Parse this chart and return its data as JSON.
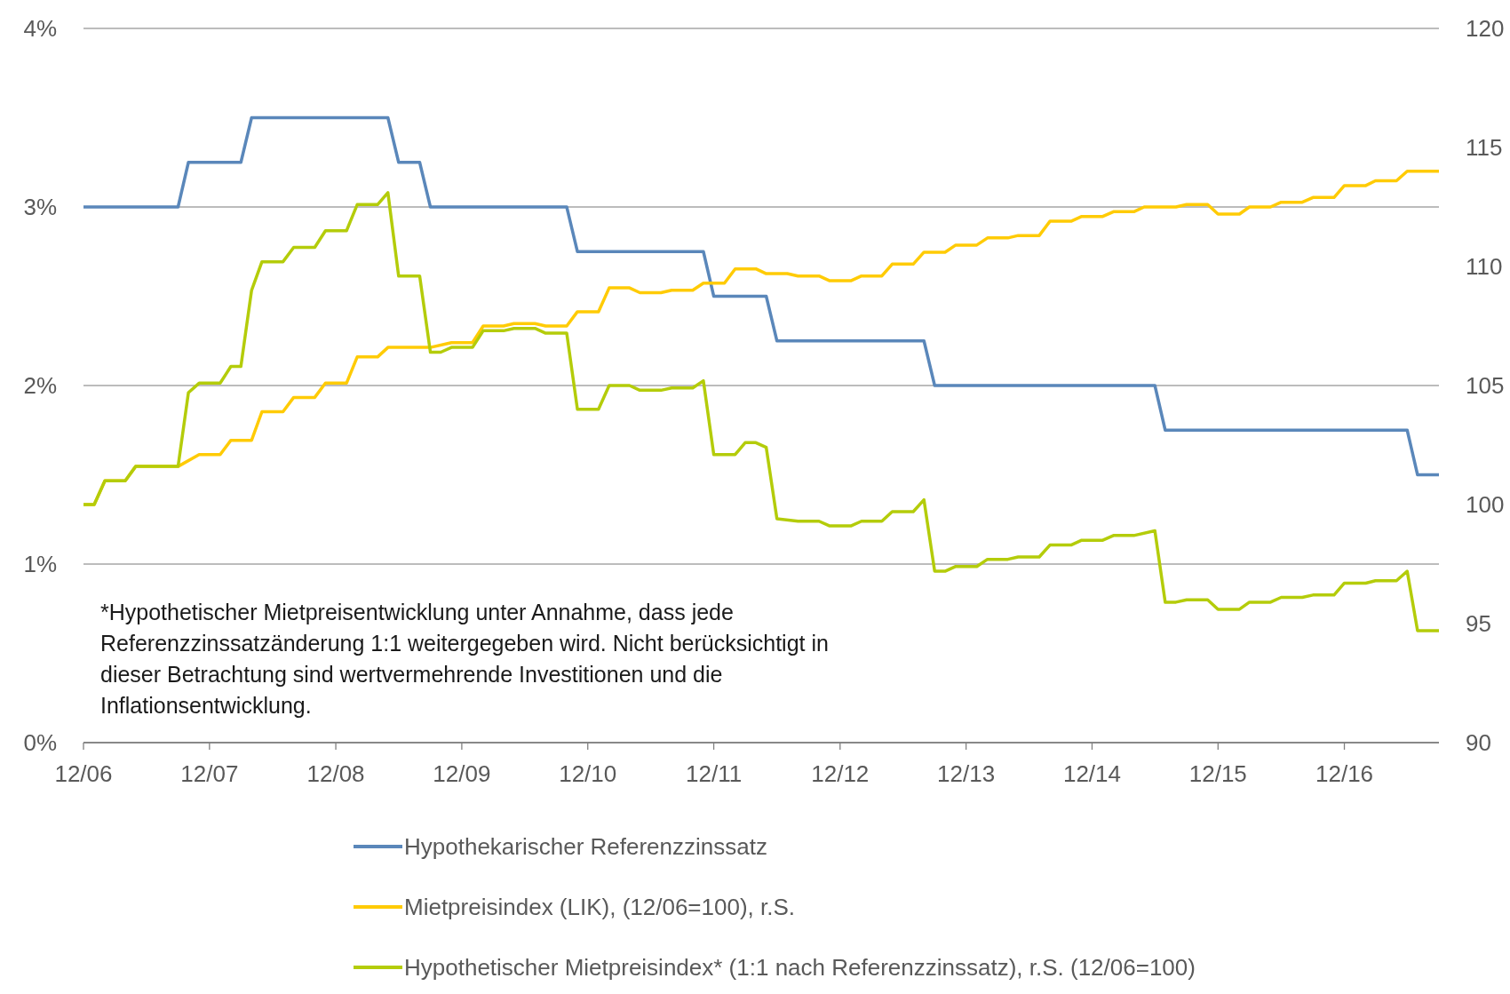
{
  "chart_data": {
    "type": "line",
    "legend": "bottom",
    "grid": "y",
    "line_style": "solid",
    "marker": "none",
    "xlim": [
      "2006-12",
      "2017-09"
    ],
    "xticks": [
      {
        "value": "2006-12",
        "label": "12/06"
      },
      {
        "value": "2007-12",
        "label": "12/07"
      },
      {
        "value": "2008-12",
        "label": "12/08"
      },
      {
        "value": "2009-12",
        "label": "12/09"
      },
      {
        "value": "2010-12",
        "label": "12/10"
      },
      {
        "value": "2011-12",
        "label": "12/11"
      },
      {
        "value": "2012-12",
        "label": "12/12"
      },
      {
        "value": "2013-12",
        "label": "12/13"
      },
      {
        "value": "2014-12",
        "label": "12/14"
      },
      {
        "value": "2015-12",
        "label": "12/15"
      },
      {
        "value": "2016-12",
        "label": "12/16"
      }
    ],
    "ylim": [
      0,
      4
    ],
    "yticks": [
      {
        "value": 0,
        "label": "0%"
      },
      {
        "value": 1,
        "label": "1%"
      },
      {
        "value": 2,
        "label": "2%"
      },
      {
        "value": 3,
        "label": "3%"
      },
      {
        "value": 4,
        "label": "4%"
      }
    ],
    "y2lim": [
      90,
      120
    ],
    "y2ticks": [
      90,
      95,
      100,
      105,
      110,
      115,
      120
    ],
    "annotations": [
      "*Hypothetischer Mietpreisentwicklung unter Annahme, dass jede\nReferenzzinssatzänderung 1:1 weitergegeben wird. Nicht berücksichtigt in\ndieser Betrachtung sind wertvermehrende Investitionen und die\nInflationsentwicklung."
    ],
    "series": [
      {
        "name": "Hypothekarischer Referenzzinssatz",
        "color": "#5a87ba",
        "x": [
          "2006-12",
          "2007-09",
          "2007-10",
          "2008-03",
          "2008-04",
          "2009-05",
          "2009-06",
          "2009-08",
          "2009-09",
          "2010-10",
          "2010-11",
          "2011-11",
          "2011-12",
          "2012-05",
          "2012-06",
          "2013-08",
          "2013-09",
          "2015-06",
          "2015-07",
          "2017-06",
          "2017-07",
          "2017-09"
        ],
        "values": [
          3,
          3,
          3.25,
          3.25,
          3.5,
          3.5,
          3.25,
          3.25,
          3,
          3,
          2.75,
          2.75,
          2.5,
          2.5,
          2.25,
          2.25,
          2,
          2,
          1.75,
          1.75,
          1.5,
          1.5
        ]
      },
      {
        "name": "Mietpreisindex (LIK), (12/06=100), r.S.",
        "color": "#ffcb05",
        "axis": "y2",
        "x": [
          "2006-12",
          "2007-01",
          "2007-02",
          "2007-04",
          "2007-05",
          "2007-09",
          "2007-11",
          "2008-01",
          "2008-02",
          "2008-04",
          "2008-05",
          "2008-07",
          "2008-08",
          "2008-10",
          "2008-11",
          "2009-01",
          "2009-02",
          "2009-04",
          "2009-05",
          "2009-09",
          "2009-11",
          "2010-01",
          "2010-02",
          "2010-04",
          "2010-05",
          "2010-07",
          "2010-08",
          "2010-10",
          "2010-11",
          "2011-01",
          "2011-02",
          "2011-04",
          "2011-05",
          "2011-07",
          "2011-08",
          "2011-10",
          "2011-11",
          "2012-01",
          "2012-02",
          "2012-04",
          "2012-05",
          "2012-07",
          "2012-08",
          "2012-10",
          "2012-11",
          "2013-01",
          "2013-02",
          "2013-04",
          "2013-05",
          "2013-07",
          "2013-08",
          "2013-10",
          "2013-11",
          "2014-01",
          "2014-02",
          "2014-04",
          "2014-05",
          "2014-07",
          "2014-08",
          "2014-10",
          "2014-11",
          "2015-01",
          "2015-02",
          "2015-04",
          "2015-05",
          "2015-08",
          "2015-09",
          "2015-11",
          "2015-12",
          "2016-02",
          "2016-03",
          "2016-05",
          "2016-06",
          "2016-08",
          "2016-09",
          "2016-11",
          "2016-12",
          "2017-02",
          "2017-03",
          "2017-05",
          "2017-06",
          "2017-09"
        ],
        "values": [
          100,
          100,
          101,
          101,
          101.6,
          101.6,
          102.1,
          102.1,
          102.7,
          102.7,
          103.9,
          103.9,
          104.5,
          104.5,
          105.1,
          105.1,
          106.2,
          106.2,
          106.6,
          106.6,
          106.8,
          106.8,
          107.5,
          107.5,
          107.6,
          107.6,
          107.5,
          107.5,
          108.1,
          108.1,
          109.1,
          109.1,
          108.9,
          108.9,
          109,
          109,
          109.3,
          109.3,
          109.9,
          109.9,
          109.7,
          109.7,
          109.6,
          109.6,
          109.4,
          109.4,
          109.6,
          109.6,
          110.1,
          110.1,
          110.6,
          110.6,
          110.9,
          110.9,
          111.2,
          111.2,
          111.3,
          111.3,
          111.9,
          111.9,
          112.1,
          112.1,
          112.3,
          112.3,
          112.5,
          112.5,
          112.6,
          112.6,
          112.2,
          112.2,
          112.5,
          112.5,
          112.7,
          112.7,
          112.9,
          112.9,
          113.4,
          113.4,
          113.6,
          113.6,
          114,
          114
        ]
      },
      {
        "name": "Hypothetischer Mietpreisindex* (1:1 nach Referenzzinssatz), r.S. (12/06=100)",
        "color": "#b4cc0a",
        "axis": "y2",
        "x": [
          "2006-12",
          "2007-01",
          "2007-02",
          "2007-04",
          "2007-05",
          "2007-08",
          "2007-09",
          "2007-10",
          "2007-11",
          "2008-01",
          "2008-02",
          "2008-03",
          "2008-04",
          "2008-05",
          "2008-07",
          "2008-08",
          "2008-10",
          "2008-11",
          "2009-01",
          "2009-02",
          "2009-04",
          "2009-05",
          "2009-06",
          "2009-08",
          "2009-09",
          "2009-10",
          "2009-11",
          "2010-01",
          "2010-02",
          "2010-04",
          "2010-05",
          "2010-07",
          "2010-08",
          "2010-10",
          "2010-11",
          "2011-01",
          "2011-02",
          "2011-04",
          "2011-05",
          "2011-07",
          "2011-08",
          "2011-10",
          "2011-11",
          "2011-12",
          "2012-02",
          "2012-03",
          "2012-04",
          "2012-05",
          "2012-06",
          "2012-08",
          "2012-10",
          "2012-11",
          "2013-01",
          "2013-02",
          "2013-04",
          "2013-05",
          "2013-07",
          "2013-08",
          "2013-09",
          "2013-10",
          "2013-11",
          "2014-01",
          "2014-02",
          "2014-04",
          "2014-05",
          "2014-07",
          "2014-08",
          "2014-10",
          "2014-11",
          "2015-01",
          "2015-02",
          "2015-04",
          "2015-06",
          "2015-07",
          "2015-08",
          "2015-09",
          "2015-11",
          "2015-12",
          "2016-02",
          "2016-03",
          "2016-05",
          "2016-06",
          "2016-08",
          "2016-09",
          "2016-11",
          "2016-12",
          "2017-02",
          "2017-03",
          "2017-05",
          "2017-06",
          "2017-07",
          "2017-09"
        ],
        "values": [
          100,
          100,
          101,
          101,
          101.6,
          101.6,
          101.6,
          104.7,
          105.1,
          105.1,
          105.8,
          105.8,
          109,
          110.2,
          110.2,
          110.8,
          110.8,
          111.5,
          111.5,
          112.6,
          112.6,
          113.1,
          109.6,
          109.6,
          106.4,
          106.4,
          106.6,
          106.6,
          107.3,
          107.3,
          107.4,
          107.4,
          107.2,
          107.2,
          104,
          104,
          105,
          105,
          104.8,
          104.8,
          104.9,
          104.9,
          105.2,
          102.1,
          102.1,
          102.6,
          102.6,
          102.4,
          99.4,
          99.3,
          99.3,
          99.1,
          99.1,
          99.3,
          99.3,
          99.7,
          99.7,
          100.2,
          97.2,
          97.2,
          97.4,
          97.4,
          97.7,
          97.7,
          97.8,
          97.8,
          98.3,
          98.3,
          98.5,
          98.5,
          98.7,
          98.7,
          98.9,
          95.9,
          95.9,
          96,
          96,
          95.6,
          95.6,
          95.9,
          95.9,
          96.1,
          96.1,
          96.2,
          96.2,
          96.7,
          96.7,
          96.8,
          96.8,
          97.2,
          94.7,
          94.7
        ]
      }
    ]
  }
}
